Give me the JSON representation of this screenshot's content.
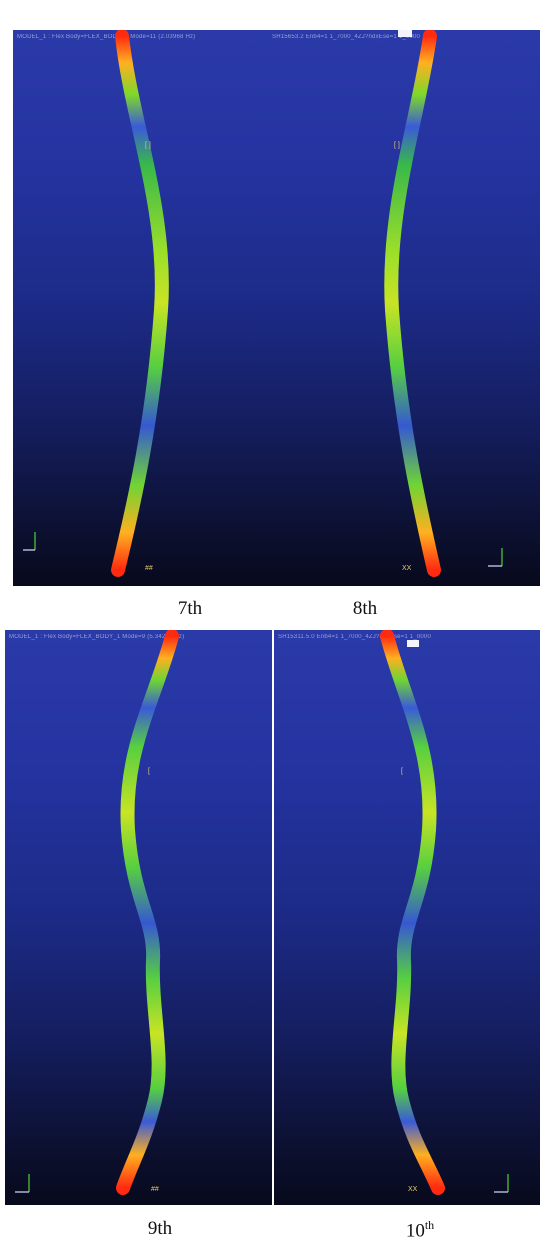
{
  "panels": [
    {
      "id": "7th",
      "header": "MODEL_1 : Flex Body=FLEX_BODY_1  Mode=11 (2.03968 Hz)",
      "caption": "7th",
      "curve": "c1"
    },
    {
      "id": "8th",
      "header": "SH15653.2 Enb4=1  1_7000_4ZJ?ndxEse=1  1_0000",
      "caption": "8th",
      "curve": "c1m"
    },
    {
      "id": "9th",
      "header": "MODEL_1 : Flex Body=FLEX_BODY_1  Mode=9 (5.34290 Hz)",
      "caption": "9th",
      "curve": "c2"
    },
    {
      "id": "10th",
      "header": "SH15311.5.0 Enb4=1  1_7000_4ZJ?ndxEse=1  1_0000",
      "caption": "10",
      "caption_sup": "th",
      "curve": "c2m"
    }
  ],
  "colors": {
    "bg_top": "#2a3aa8",
    "bg_bottom": "#07091c",
    "red": "#ff2a10",
    "yellow": "#e8e21a",
    "green": "#4fd23a",
    "blue": "#3b5ad8"
  },
  "icons": [
    "axis-triad-icon",
    "node-marker-icon"
  ]
}
